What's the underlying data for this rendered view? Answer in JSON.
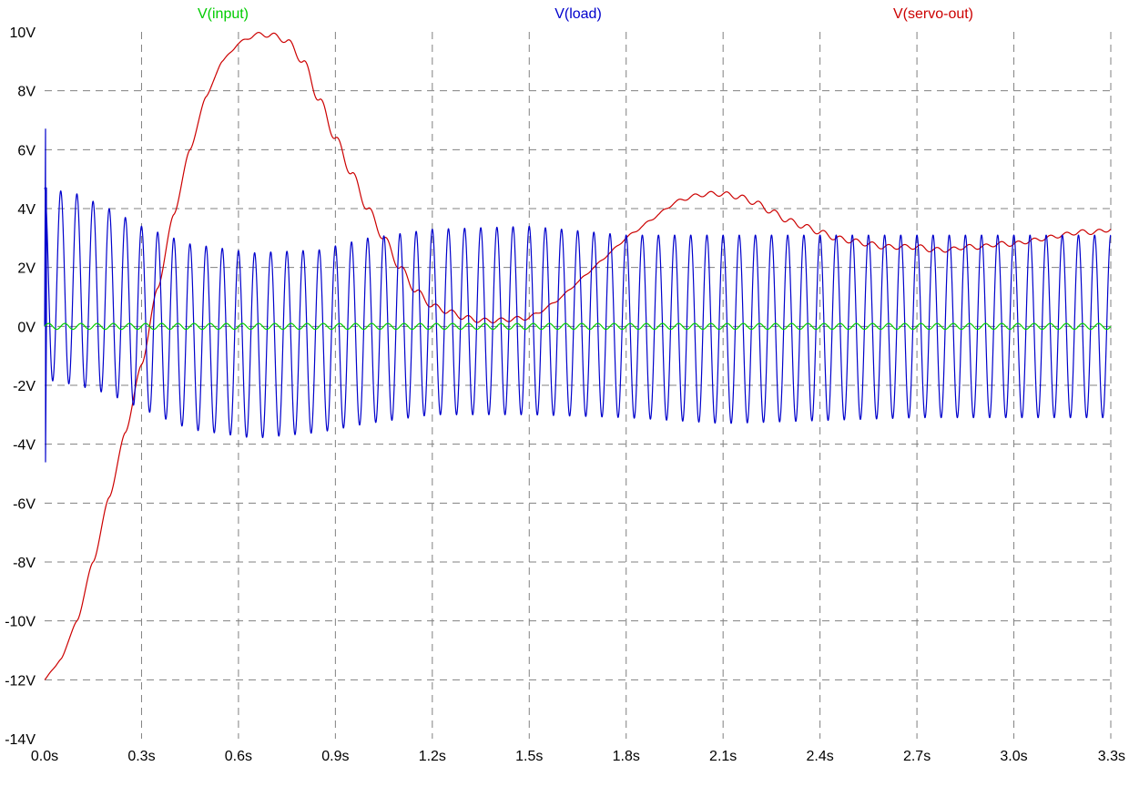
{
  "chart_data": {
    "type": "line",
    "title": "",
    "xlabel": "",
    "ylabel": "",
    "xlim": [
      0,
      3.3
    ],
    "ylim": [
      -14,
      10
    ],
    "x_ticks": [
      "0.0s",
      "0.3s",
      "0.6s",
      "0.9s",
      "1.2s",
      "1.5s",
      "1.8s",
      "2.1s",
      "2.4s",
      "2.7s",
      "3.0s",
      "3.3s"
    ],
    "y_ticks": [
      "10V",
      "8V",
      "6V",
      "4V",
      "2V",
      "0V",
      "-2V",
      "-4V",
      "-6V",
      "-8V",
      "-10V",
      "-12V",
      "-14V"
    ],
    "grid": true,
    "legend_placement": "top",
    "series": [
      {
        "name": "V(input)",
        "color": "#00cc00",
        "kind": "sine",
        "amplitude": 0.1,
        "offset": 0.0,
        "frequency_hz": 20
      },
      {
        "name": "V(load)",
        "color": "#0000cc",
        "kind": "oscillation",
        "frequency_hz": 20,
        "startup_spike": [
          6.7,
          -4.6
        ],
        "envelope": [
          {
            "t": 0.0,
            "max": 4.7,
            "min": -1.8
          },
          {
            "t": 0.1,
            "max": 4.5,
            "min": -2.0
          },
          {
            "t": 0.2,
            "max": 4.0,
            "min": -2.3
          },
          {
            "t": 0.3,
            "max": 3.4,
            "min": -2.8
          },
          {
            "t": 0.45,
            "max": 2.8,
            "min": -3.5
          },
          {
            "t": 0.65,
            "max": 2.5,
            "min": -3.8
          },
          {
            "t": 0.85,
            "max": 2.6,
            "min": -3.6
          },
          {
            "t": 1.0,
            "max": 3.0,
            "min": -3.3
          },
          {
            "t": 1.2,
            "max": 3.3,
            "min": -3.0
          },
          {
            "t": 1.5,
            "max": 3.4,
            "min": -3.0
          },
          {
            "t": 1.8,
            "max": 3.1,
            "min": -3.1
          },
          {
            "t": 2.1,
            "max": 3.1,
            "min": -3.3
          },
          {
            "t": 2.4,
            "max": 3.1,
            "min": -3.2
          },
          {
            "t": 2.7,
            "max": 3.1,
            "min": -3.1
          },
          {
            "t": 3.0,
            "max": 3.1,
            "min": -3.1
          },
          {
            "t": 3.3,
            "max": 3.1,
            "min": -3.1
          }
        ]
      },
      {
        "name": "V(servo-out)",
        "color": "#cc0000",
        "kind": "line",
        "ripple": 0.08,
        "x": [
          0.0,
          0.05,
          0.1,
          0.15,
          0.2,
          0.25,
          0.3,
          0.35,
          0.4,
          0.45,
          0.5,
          0.55,
          0.6,
          0.65,
          0.7,
          0.75,
          0.8,
          0.85,
          0.9,
          0.95,
          1.0,
          1.05,
          1.1,
          1.15,
          1.2,
          1.25,
          1.3,
          1.35,
          1.4,
          1.45,
          1.5,
          1.55,
          1.6,
          1.65,
          1.7,
          1.75,
          1.8,
          1.85,
          1.9,
          1.95,
          2.0,
          2.05,
          2.1,
          2.15,
          2.2,
          2.25,
          2.3,
          2.35,
          2.4,
          2.45,
          2.5,
          2.55,
          2.6,
          2.65,
          2.7,
          2.75,
          2.8,
          2.85,
          2.9,
          2.95,
          3.0,
          3.05,
          3.1,
          3.15,
          3.2,
          3.25,
          3.3
        ],
        "y": [
          -12.0,
          -11.3,
          -10.0,
          -8.0,
          -5.8,
          -3.6,
          -1.3,
          1.3,
          3.8,
          6.0,
          7.8,
          9.0,
          9.6,
          9.9,
          9.9,
          9.7,
          9.0,
          7.7,
          6.4,
          5.2,
          4.0,
          3.0,
          2.0,
          1.2,
          0.7,
          0.5,
          0.3,
          0.2,
          0.2,
          0.25,
          0.3,
          0.6,
          1.0,
          1.5,
          2.0,
          2.5,
          3.0,
          3.4,
          3.8,
          4.2,
          4.4,
          4.5,
          4.5,
          4.4,
          4.2,
          3.9,
          3.6,
          3.4,
          3.2,
          3.0,
          2.9,
          2.8,
          2.7,
          2.7,
          2.7,
          2.6,
          2.6,
          2.7,
          2.7,
          2.8,
          2.8,
          2.9,
          3.0,
          3.1,
          3.2,
          3.2,
          3.3
        ]
      }
    ]
  }
}
